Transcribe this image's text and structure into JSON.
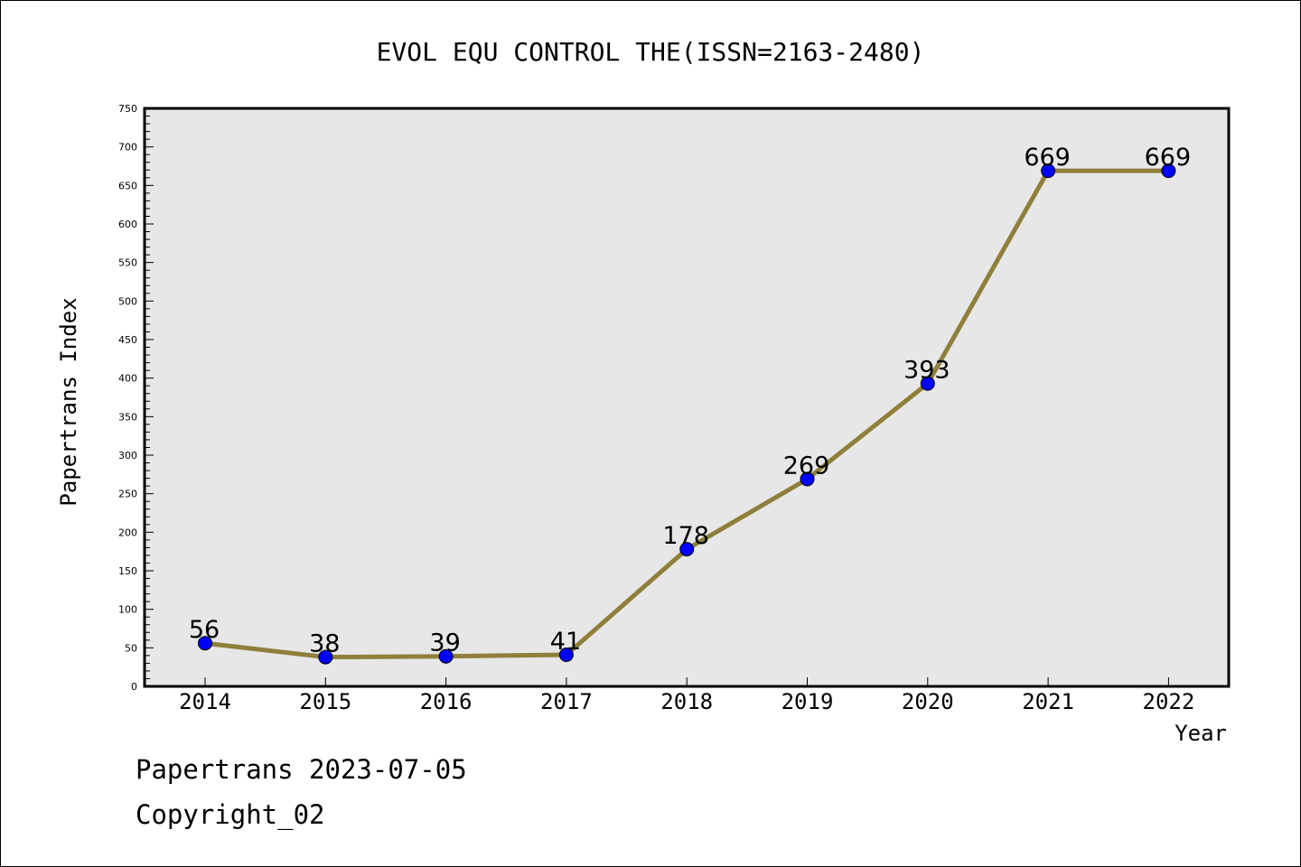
{
  "chart_data": {
    "type": "line",
    "title": "EVOL EQU CONTROL THE(ISSN=2163-2480)",
    "xlabel": "Year",
    "ylabel": "Papertrans Index",
    "categories": [
      "2014",
      "2015",
      "2016",
      "2017",
      "2018",
      "2019",
      "2020",
      "2021",
      "2022"
    ],
    "values": [
      56,
      38,
      39,
      41,
      178,
      269,
      393,
      669,
      669
    ],
    "data_labels": [
      "56",
      "38",
      "39",
      "41",
      "178",
      "269",
      "393",
      "669",
      "669"
    ],
    "ylim": [
      0,
      750
    ],
    "yticks": [
      0,
      50,
      100,
      150,
      200,
      250,
      300,
      350,
      400,
      450,
      500,
      550,
      600,
      650,
      700,
      750
    ],
    "grid": false,
    "colors": {
      "line": "#8F7F3A",
      "marker": "#0000FF",
      "plot_background": "#E7E7E7"
    }
  },
  "footer": {
    "line1": "Papertrans 2023-07-05",
    "line2": "Copyright_02"
  }
}
